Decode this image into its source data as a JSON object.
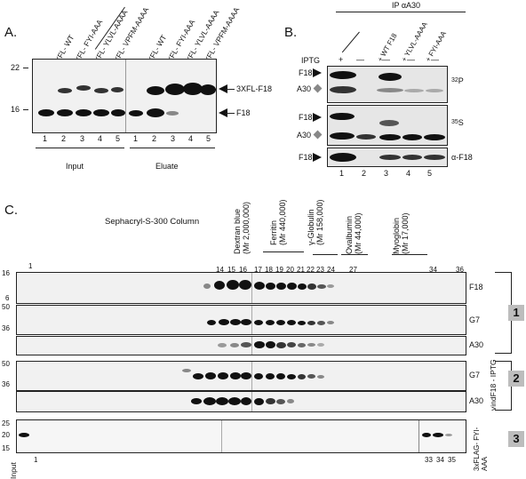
{
  "panelA": {
    "letter": "A.",
    "markers": [
      "22",
      "16"
    ],
    "lanes_input": [
      "—",
      "3XFL- WT",
      "3XFL- FYI-AAA",
      "3XFL- YLVL-AAAA",
      "3XFL- VPFM-AAAA"
    ],
    "lanes_eluate": [
      "—",
      "3XFL- WT",
      "3XFL- FYI-AAA",
      "3XFL- YLVL-AAAA",
      "3XFL- VPFM-AAAA"
    ],
    "lane_numbers": [
      "1",
      "2",
      "3",
      "4",
      "5"
    ],
    "arrow_upper": "3XFL-F18",
    "arrow_lower": "F18",
    "group_input": "Input",
    "group_eluate": "Eluate"
  },
  "panelB": {
    "letter": "B.",
    "ip_label": "IP αA30",
    "iptg_label": "IPTG",
    "iptg_signs": [
      "+",
      "—",
      "—",
      "—",
      "—"
    ],
    "lane_heads": [
      "+ WT F18",
      "+ YLVL-AAAA",
      "+ FYI-AAA"
    ],
    "label_f18": "F18",
    "label_a30": "A30",
    "right_32p": "32",
    "right_32p_sub": "P",
    "right_35s": "35",
    "right_35s_sub": "S",
    "right_alpha": "α-F18",
    "lane_numbers": [
      "1",
      "2",
      "3",
      "4",
      "5"
    ]
  },
  "panelC": {
    "letter": "C.",
    "column_label": "Sephacryl-S-300 Column",
    "standards": [
      {
        "name": "Dextran blue",
        "mr": "(Mr 2,000,000)"
      },
      {
        "name": "Ferritin",
        "mr": "(Mr 440,000)"
      },
      {
        "name": "γ-Globulin",
        "mr": "(Mr 158,000)"
      },
      {
        "name": "Ovalbumin",
        "mr": "(Mr 44,000)"
      },
      {
        "name": "Myoglobin",
        "mr": "(Mr 17,000)"
      }
    ],
    "fractions_top": [
      "1",
      "14",
      "15",
      "16",
      "17",
      "18",
      "19",
      "20",
      "21",
      "22",
      "23",
      "24",
      "27",
      "34",
      "36"
    ],
    "markers_g1": [
      "16",
      "6",
      "50",
      "36"
    ],
    "markers_g2": [
      "50",
      "36"
    ],
    "markers_g3": [
      "25",
      "20",
      "15"
    ],
    "row_labels": [
      "F18",
      "G7",
      "A30",
      "G7",
      "A30"
    ],
    "group1": "1",
    "group2": "2",
    "group2_label": "vindF18 - IPTG",
    "group3": "3",
    "group3_label": "3xFLAG- FYI-AAA",
    "bottom_input": "Input",
    "bottom_numbers": [
      "1",
      "33",
      "34",
      "35"
    ]
  }
}
